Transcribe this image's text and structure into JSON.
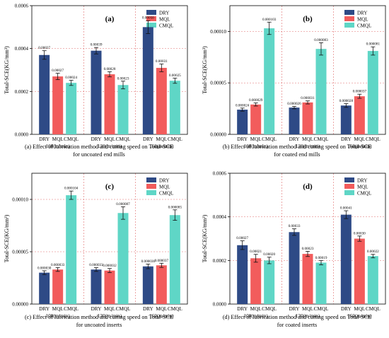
{
  "colors": {
    "DRY": "#2e4a86",
    "MQL": "#f25c5c",
    "CMQL": "#5fd6c6",
    "grid": "#e06b6b",
    "error": "#111111"
  },
  "legend": [
    "DRY",
    "MQL",
    "CMQL"
  ],
  "chart_data": [
    {
      "type": "bar",
      "panel_label": "(a)",
      "ylabel": "Total-SCE(KG/mm³)",
      "ylim": [
        0,
        0.0006
      ],
      "yticks": [
        "0.0000",
        "0.0002",
        "0.0004",
        "0.0006"
      ],
      "ytick_values": [
        0,
        0.0002,
        0.0004,
        0.0006
      ],
      "groups": [
        "100(m/min)",
        "130(m/min)",
        "160(m/min)"
      ],
      "methods": [
        "DRY",
        "MQL",
        "CMQL"
      ],
      "values": [
        [
          0.00037,
          0.00027,
          0.00024
        ],
        [
          0.00039,
          0.00028,
          0.00023
        ],
        [
          0.0005,
          0.00031,
          0.00025
        ]
      ],
      "errors": [
        [
          2e-05,
          1.5e-05,
          1.2e-05
        ],
        [
          1.5e-05,
          1.2e-05,
          1.8e-05
        ],
        [
          3e-05,
          1.8e-05,
          1.2e-05
        ]
      ],
      "value_labels": [
        [
          "0.00037",
          "0.00027",
          "0.00024"
        ],
        [
          "0.00039",
          "0.00028",
          "0.00023"
        ],
        [
          "0.00050",
          "0.00031",
          "0.00025"
        ]
      ],
      "caption": [
        "(a) Effect of lubrication method and cutting speed on Total-SCE",
        "for uncoated end mills"
      ]
    },
    {
      "type": "bar",
      "panel_label": "(b)",
      "ylabel": "Total-SCE(KG/mm³)",
      "ylim": [
        0,
        0.000125
      ],
      "yticks": [
        "0.00000",
        "0.00005",
        "0.00010"
      ],
      "ytick_values": [
        0,
        5e-05,
        0.0001
      ],
      "groups": [
        "100(m/min)",
        "130(m/min)",
        "160(m/min)"
      ],
      "methods": [
        "DRY",
        "MQL",
        "CMQL"
      ],
      "values": [
        [
          2.4e-05,
          2.9e-05,
          0.000103
        ],
        [
          2.6e-05,
          3.1e-05,
          8.3e-05
        ],
        [
          2.8e-05,
          3.7e-05,
          8.1e-05
        ]
      ],
      "errors": [
        [
          1.5e-06,
          1.5e-06,
          6e-06
        ],
        [
          1.2e-06,
          1.5e-06,
          6e-06
        ],
        [
          1.8e-06,
          2e-06,
          4e-06
        ]
      ],
      "value_labels": [
        [
          "0.000024",
          "0.000029",
          "0.000103"
        ],
        [
          "0.000026",
          "0.000031",
          "0.000083"
        ],
        [
          "0.000028",
          "0.000037",
          "0.000081"
        ]
      ],
      "caption": [
        "(b) Effect of lubrication method and cutting speed on Total-SCE",
        "for coated end mills"
      ]
    },
    {
      "type": "bar",
      "panel_label": "(c)",
      "ylabel": "Total-SCE(KG/mm³)",
      "ylim": [
        0,
        0.000125
      ],
      "yticks": [
        "0.00000",
        "0.00005",
        "0.00010"
      ],
      "ytick_values": [
        0,
        5e-05,
        0.0001
      ],
      "groups": [
        "100(m/min)",
        "130(m/min)",
        "160(m/min)"
      ],
      "methods": [
        "DRY",
        "MQL",
        "CMQL"
      ],
      "values": [
        [
          3e-05,
          3.3e-05,
          0.000104
        ],
        [
          3.3e-05,
          3.2e-05,
          8.7e-05
        ],
        [
          3.6e-05,
          3.7e-05,
          8.5e-05
        ]
      ],
      "errors": [
        [
          1.8e-06,
          1.8e-06,
          4e-06
        ],
        [
          1.8e-06,
          2e-06,
          6e-06
        ],
        [
          2.2e-06,
          2e-06,
          5e-06
        ]
      ],
      "value_labels": [
        [
          "0.000030",
          "0.000033",
          "0.000104"
        ],
        [
          "0.000033",
          "0.000032",
          "0.000087"
        ],
        [
          "0.000036",
          "0.000037",
          "0.000085"
        ]
      ],
      "caption": [
        "(c) Effect of lubrication method and cutting speed on Total-SCE",
        "for uncoated inserts"
      ]
    },
    {
      "type": "bar",
      "panel_label": "(d)",
      "ylabel": "Total-SCE(KG/mm³)",
      "ylim": [
        0,
        0.0006
      ],
      "yticks": [
        "0.0000",
        "0.0002",
        "0.0004",
        "0.0006"
      ],
      "ytick_values": [
        0,
        0.0002,
        0.0004,
        0.0006
      ],
      "groups": [
        "100(m/min)",
        "130(m/min)",
        "160(m/min)"
      ],
      "methods": [
        "DRY",
        "MQL",
        "CMQL"
      ],
      "values": [
        [
          0.00027,
          0.00021,
          0.0002
        ],
        [
          0.00033,
          0.00023,
          0.00019
        ],
        [
          0.00041,
          0.0003,
          0.00022
        ]
      ],
      "errors": [
        [
          2e-05,
          1.8e-05,
          1.5e-05
        ],
        [
          1.5e-05,
          1.2e-05,
          1e-05
        ],
        [
          1.8e-05,
          1.2e-05,
          8e-06
        ]
      ],
      "value_labels": [
        [
          "0.00027",
          "0.00021",
          "0.00020"
        ],
        [
          "0.00033",
          "0.00023",
          "0.00019"
        ],
        [
          "0.00041",
          "0.00030",
          "0.00022"
        ]
      ],
      "caption": [
        "(d) Effect of lubrication method and cutting speed on Total-SCE",
        "for coated inserts"
      ]
    }
  ]
}
